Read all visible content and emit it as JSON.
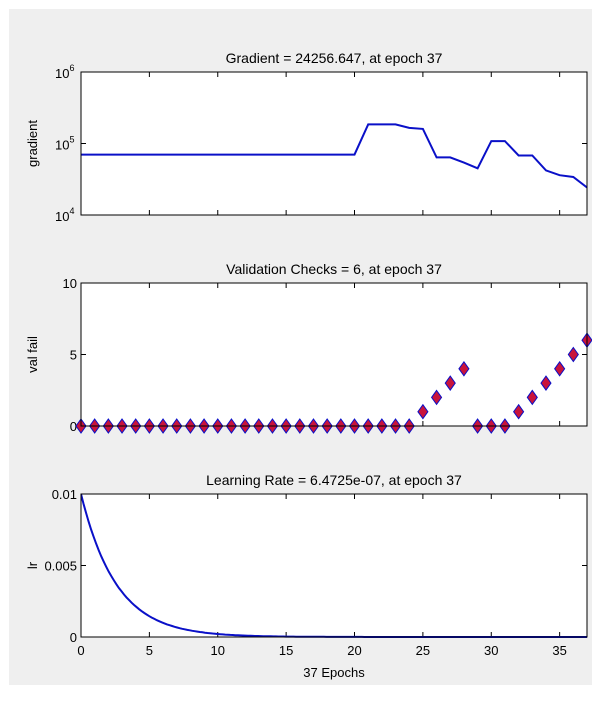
{
  "figure": {
    "background": "#efefef",
    "axes_background": "#ffffff",
    "line_color": "#0a10c8",
    "marker_color": "#c8143c"
  },
  "chart_data": [
    {
      "type": "line",
      "title": "Gradient = 24256.647, at epoch 37",
      "ylabel": "gradient",
      "xlabel": "",
      "xlim": [
        0,
        37
      ],
      "ylim": [
        10000,
        1000000
      ],
      "yscale": "log",
      "yticks": [
        {
          "base": "10",
          "exp": "4",
          "value": 10000
        },
        {
          "base": "10",
          "exp": "5",
          "value": 100000
        },
        {
          "base": "10",
          "exp": "6",
          "value": 1000000
        }
      ],
      "xticks_labeled": false,
      "x": [
        0,
        20,
        21,
        22,
        23,
        24,
        25,
        26,
        27,
        28,
        29,
        30,
        31,
        32,
        33,
        34,
        35,
        36,
        37
      ],
      "y": [
        70000,
        70000,
        185000,
        185000,
        185000,
        165000,
        160000,
        64000,
        64000,
        54000,
        45000,
        108000,
        108000,
        68000,
        68000,
        42000,
        36000,
        34000,
        24256.647
      ]
    },
    {
      "type": "scatter",
      "title": "Validation Checks = 6, at epoch 37",
      "ylabel": "val fail",
      "xlabel": "",
      "xlim": [
        0,
        37
      ],
      "ylim": [
        0,
        10
      ],
      "yticks": [
        "0",
        "5",
        "10"
      ],
      "xticks_labeled": false,
      "x": [
        0,
        1,
        2,
        3,
        4,
        5,
        6,
        7,
        8,
        9,
        10,
        11,
        12,
        13,
        14,
        15,
        16,
        17,
        18,
        19,
        20,
        21,
        22,
        23,
        24,
        25,
        26,
        27,
        28,
        29,
        30,
        31,
        32,
        33,
        34,
        35,
        36,
        37
      ],
      "y": [
        0,
        0,
        0,
        0,
        0,
        0,
        0,
        0,
        0,
        0,
        0,
        0,
        0,
        0,
        0,
        0,
        0,
        0,
        0,
        0,
        0,
        0,
        0,
        0,
        0,
        1,
        2,
        3,
        4,
        0,
        0,
        0,
        1,
        2,
        3,
        4,
        5,
        6
      ]
    },
    {
      "type": "line",
      "title": "Learning Rate = 6.4725e-07, at epoch 37",
      "ylabel": "lr",
      "xlabel": "37 Epochs",
      "xlim": [
        0,
        37
      ],
      "ylim": [
        0,
        0.01
      ],
      "yticks": [
        "0",
        "0.005",
        "0.01"
      ],
      "xticks_labeled": true,
      "xticks": [
        "0",
        "5",
        "10",
        "15",
        "20",
        "25",
        "30",
        "35"
      ],
      "decay_rate": 0.68,
      "x": [
        0,
        1,
        2,
        3,
        4,
        5,
        6,
        7,
        8,
        9,
        10,
        11,
        12,
        13,
        14,
        15,
        16,
        17,
        18,
        19,
        20,
        21,
        22,
        23,
        24,
        25,
        26,
        27,
        28,
        29,
        30,
        31,
        32,
        33,
        34,
        35,
        36,
        37
      ],
      "y": [
        0.01,
        0.0068,
        0.004624,
        0.003144,
        0.002138,
        0.001454,
        0.000989,
        0.000672,
        0.000457,
        0.000311,
        0.000211,
        0.000144,
        9.8e-05,
        6.6e-05,
        4.5e-05,
        3.1e-05,
        2.1e-05,
        1.4e-05,
        9.7e-06,
        6.6e-06,
        4.5e-06,
        3.1e-06,
        2.1e-06,
        1.4e-06,
        9.6e-07,
        6.5e-07,
        4.4e-07,
        3e-07,
        2.1e-07,
        1.4e-07,
        9.5e-08,
        6.5e-08,
        4.4e-08,
        3e-08,
        2e-08,
        1.4e-08,
        9.5e-09,
        6.4725e-07
      ]
    }
  ]
}
